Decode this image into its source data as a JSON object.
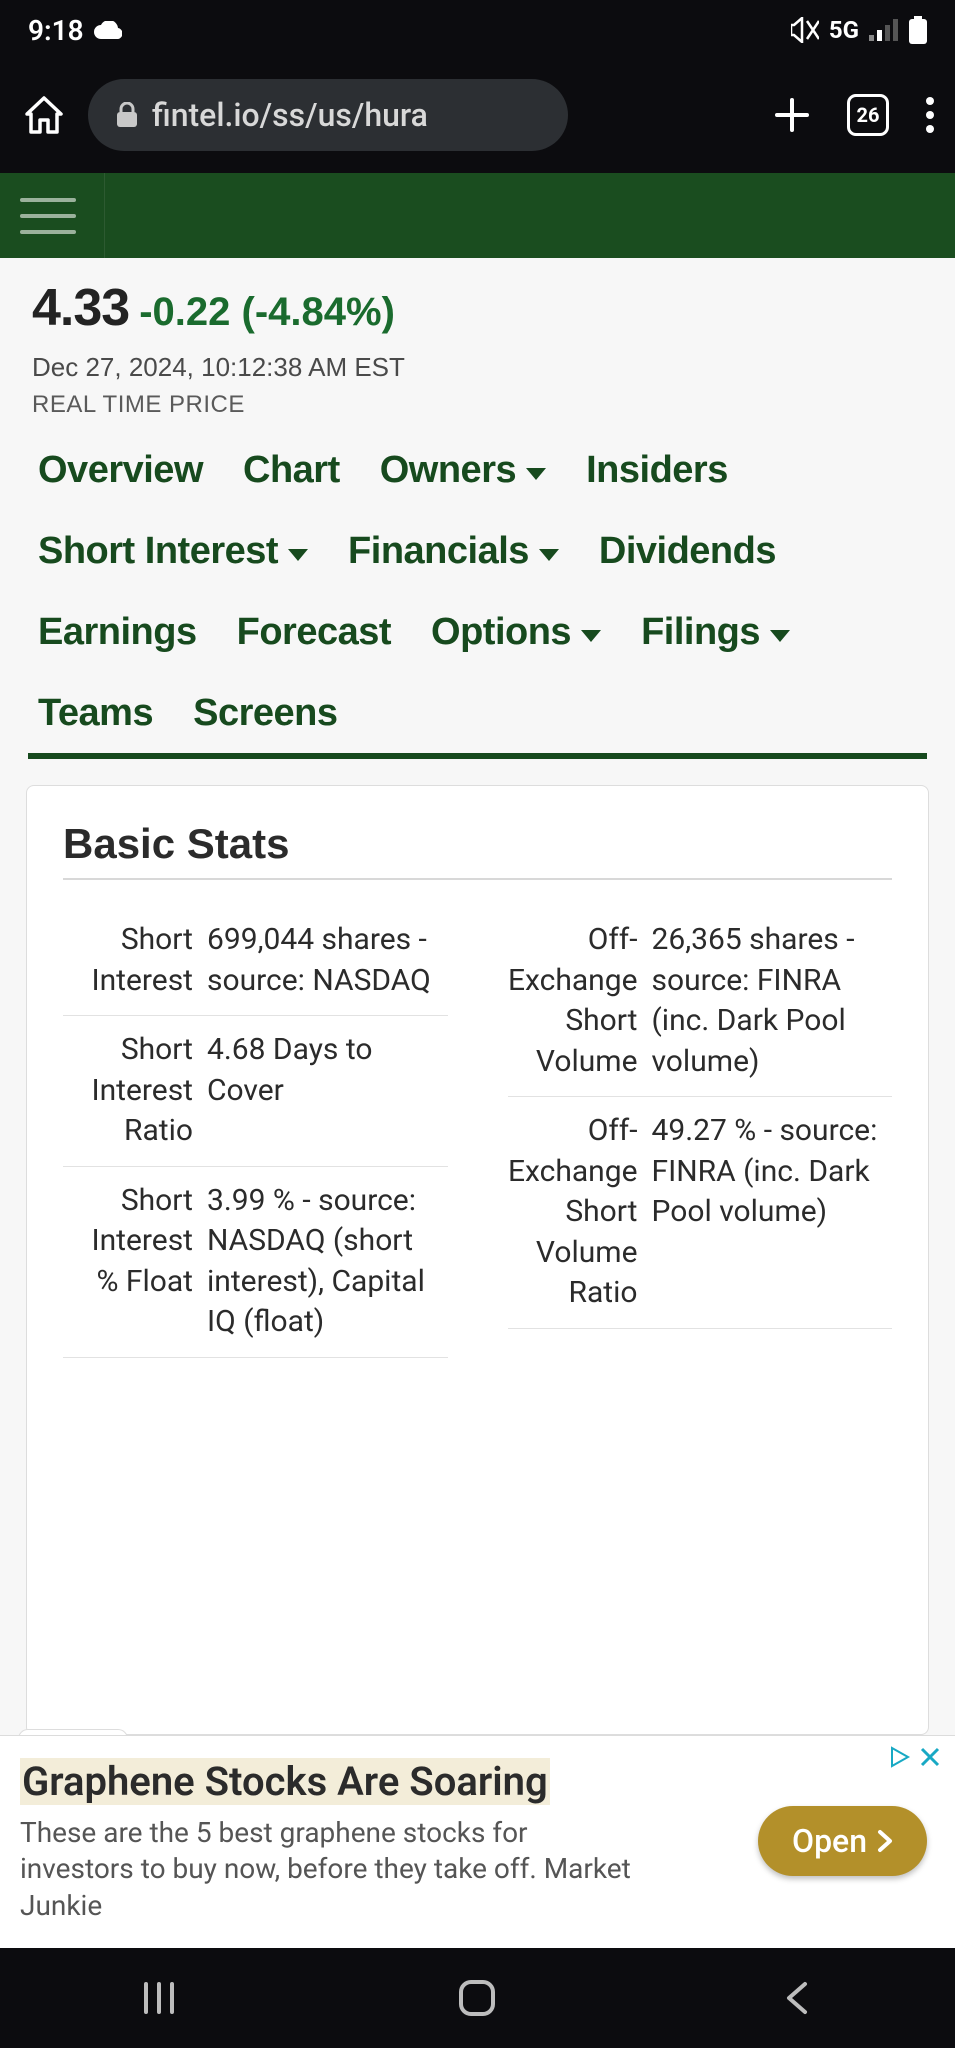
{
  "status": {
    "time": "9:18",
    "network": "5G"
  },
  "browser": {
    "url": "fintel.io/ss/us/hura",
    "tab_count": "26"
  },
  "quote": {
    "price": "4.33",
    "change": "-0.22 (-4.84%)",
    "timestamp": "Dec 27, 2024, 10:12:38 AM EST",
    "label": "REAL TIME PRICE",
    "change_color": "#1a6b2e"
  },
  "tabs": [
    {
      "label": "Overview",
      "dropdown": false
    },
    {
      "label": "Chart",
      "dropdown": false
    },
    {
      "label": "Owners",
      "dropdown": true
    },
    {
      "label": "Insiders",
      "dropdown": false
    },
    {
      "label": "Short Interest",
      "dropdown": true
    },
    {
      "label": "Financials",
      "dropdown": true
    },
    {
      "label": "Dividends",
      "dropdown": false
    },
    {
      "label": "Earnings",
      "dropdown": false
    },
    {
      "label": "Forecast",
      "dropdown": false
    },
    {
      "label": "Options",
      "dropdown": true
    },
    {
      "label": "Filings",
      "dropdown": true
    },
    {
      "label": "Teams",
      "dropdown": false
    },
    {
      "label": "Screens",
      "dropdown": false
    }
  ],
  "card": {
    "title": "Basic Stats",
    "left": [
      {
        "label": "Short Interest",
        "value": "699,044 shares - source: NASDAQ"
      },
      {
        "label": "Short Interest Ratio",
        "value": "4.68 Days to Cover"
      },
      {
        "label": "Short Interest % Float",
        "value": "3.99 % - source: NASDAQ (short interest), Capital IQ (float)"
      }
    ],
    "right": [
      {
        "label": "Off-Exchange Short Volume",
        "value": "26,365 shares - source: FINRA (inc. Dark Pool volume)"
      },
      {
        "label": "Off-Exchange Short Volume Ratio",
        "value": "49.27 % - source: FINRA (inc. Dark Pool volume)"
      }
    ]
  },
  "ad": {
    "title": "Graphene Stocks Are Soaring",
    "body": "These are the 5 best graphene stocks for investors to buy now, before they take off. Market Junkie",
    "cta": "Open"
  },
  "colors": {
    "header_bg": "#1a4d1f",
    "tab_text": "#174a1e",
    "ad_button": "#b3902a"
  }
}
